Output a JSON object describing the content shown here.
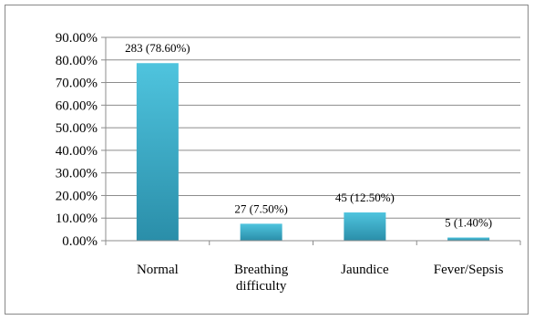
{
  "chart_data": {
    "type": "bar",
    "categories": [
      [
        "Normal"
      ],
      [
        "Breathing",
        "difficulty"
      ],
      [
        "Jaundice"
      ],
      [
        "Fever/Sepsis"
      ]
    ],
    "values": [
      78.6,
      7.5,
      12.5,
      1.4
    ],
    "data_labels": [
      "283 (78.60%)",
      "27 (7.50%)",
      "45 (12.50%)",
      "5 (1.40%)"
    ],
    "y_ticks": [
      "0.00%",
      "10.00%",
      "20.00%",
      "30.00%",
      "40.00%",
      "50.00%",
      "60.00%",
      "70.00%",
      "80.00%",
      "90.00%"
    ],
    "ylim": [
      0,
      90
    ],
    "grid": true,
    "legend": "none",
    "colors": {
      "bar_top": "#4fc4de",
      "bar_bottom": "#2a8ea9",
      "grid": "#8c8c8c",
      "axis": "#8c8c8c"
    }
  }
}
